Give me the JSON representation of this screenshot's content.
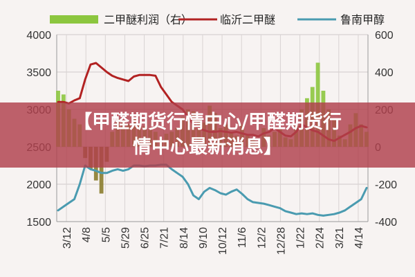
{
  "chart_data": {
    "type": "line",
    "title": "",
    "legend": [
      {
        "name": "二甲醚利润（右）",
        "kind": "bar",
        "color": "#8cc63f"
      },
      {
        "name": "临沂二甲醚",
        "kind": "line",
        "color": "#b22222"
      },
      {
        "name": "鲁南甲醇",
        "kind": "line",
        "color": "#4a9bb0"
      }
    ],
    "legend_placement": "top",
    "grid": true,
    "y_left": {
      "range": [
        1500,
        4000
      ],
      "ticks": [
        "4000",
        "3500",
        "3000",
        "2500",
        "2000",
        "1500"
      ]
    },
    "y_right": {
      "range": [
        -400,
        600
      ],
      "ticks": [
        "600",
        "400",
        "200",
        "0",
        "-200",
        "-400"
      ]
    },
    "x_ticks": [
      "3/12",
      "4/8",
      "5/5",
      "5/29",
      "6/25",
      "7/21",
      "8/14",
      "9/10",
      "10/12",
      "11/6",
      "12/2",
      "12/28",
      "1/22",
      "2/24",
      "3/21",
      "4/14"
    ],
    "series": [
      {
        "name": "临沂二甲醚",
        "axis": "left",
        "color": "#b22222",
        "values": [
          3100,
          3100,
          3080,
          3120,
          3150,
          3400,
          3600,
          3620,
          3560,
          3500,
          3450,
          3420,
          3400,
          3380,
          3440,
          3460,
          3460,
          3460,
          3450,
          3300,
          3200,
          3100,
          3050,
          3000,
          2900,
          2800,
          2750,
          2720,
          2700,
          2700,
          2710,
          2700,
          2690,
          2700,
          2680,
          2660,
          2660,
          2640,
          2680,
          2700,
          2750,
          2700,
          2650,
          2640,
          2700,
          2800,
          2760,
          2720,
          2700,
          2650,
          2600,
          2580,
          2620,
          2660,
          2700,
          2750,
          2780,
          2760
        ]
      },
      {
        "name": "鲁南甲醇",
        "axis": "left",
        "color": "#4a9bb0",
        "values": [
          1650,
          1700,
          1750,
          1800,
          2000,
          2250,
          2200,
          2180,
          2150,
          2150,
          2180,
          2200,
          2180,
          2200,
          2250,
          2250,
          2240,
          2250,
          2250,
          2260,
          2260,
          2200,
          2150,
          2100,
          2000,
          1850,
          1800,
          1900,
          1950,
          1920,
          1880,
          1860,
          1900,
          1930,
          1870,
          1800,
          1760,
          1750,
          1740,
          1720,
          1700,
          1680,
          1640,
          1620,
          1600,
          1610,
          1600,
          1610,
          1590,
          1580,
          1590,
          1600,
          1620,
          1650,
          1700,
          1750,
          1800,
          1950
        ]
      },
      {
        "name": "二甲醚利润（右）",
        "axis": "right",
        "type": "bar",
        "color": "#8cc63f",
        "values": [
          300,
          280,
          200,
          150,
          120,
          -60,
          -120,
          -180,
          -250,
          -80,
          80,
          150,
          140,
          120,
          150,
          120,
          110,
          90,
          80,
          40,
          70,
          80,
          100,
          160,
          200,
          190,
          150,
          130,
          220,
          180,
          100,
          120,
          80,
          60,
          120,
          60,
          40,
          20,
          100,
          60,
          80,
          100,
          50,
          40,
          120,
          200,
          260,
          320,
          450,
          300,
          200,
          150,
          60,
          40,
          120,
          180,
          120,
          80
        ]
      }
    ]
  },
  "banner": {
    "line1": "【甲醛期货行情中心/甲醛期货行",
    "line2": "情中心最新消息】"
  }
}
